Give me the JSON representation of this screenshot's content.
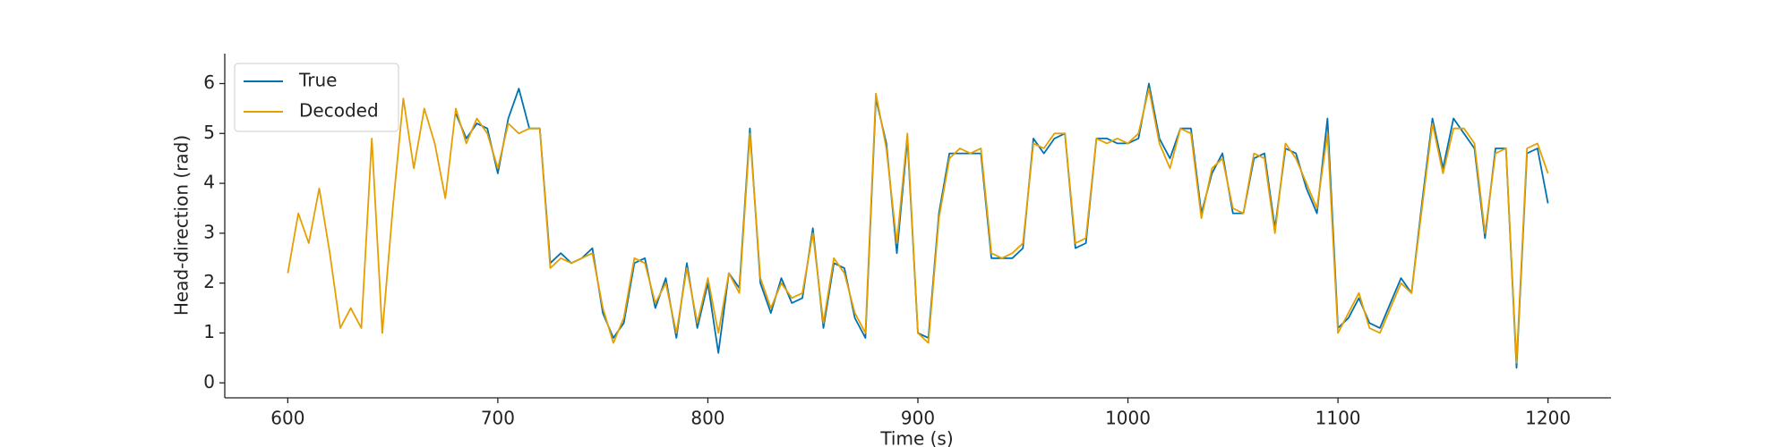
{
  "chart_data": {
    "type": "line",
    "xlabel": "Time (s)",
    "ylabel": "Head-direction (rad)",
    "x": [
      600,
      605,
      610,
      615,
      620,
      625,
      630,
      635,
      640,
      645,
      650,
      655,
      660,
      665,
      670,
      675,
      680,
      685,
      690,
      695,
      700,
      705,
      710,
      715,
      720,
      725,
      730,
      735,
      740,
      745,
      750,
      755,
      760,
      765,
      770,
      775,
      780,
      785,
      790,
      795,
      800,
      805,
      810,
      815,
      820,
      825,
      830,
      835,
      840,
      845,
      850,
      855,
      860,
      865,
      870,
      875,
      880,
      885,
      890,
      895,
      900,
      905,
      910,
      915,
      920,
      925,
      930,
      935,
      940,
      945,
      950,
      955,
      960,
      965,
      970,
      975,
      980,
      985,
      990,
      995,
      1000,
      1005,
      1010,
      1015,
      1020,
      1025,
      1030,
      1035,
      1040,
      1045,
      1050,
      1055,
      1060,
      1065,
      1070,
      1075,
      1080,
      1085,
      1090,
      1095,
      1100,
      1105,
      1110,
      1115,
      1120,
      1125,
      1130,
      1135,
      1140,
      1145,
      1150,
      1155,
      1160,
      1165,
      1170,
      1175,
      1180,
      1185,
      1190,
      1195,
      1200
    ],
    "series": [
      {
        "name": "True",
        "color": "#0072b2",
        "values": [
          null,
          null,
          null,
          null,
          null,
          null,
          null,
          null,
          null,
          null,
          null,
          null,
          null,
          null,
          null,
          null,
          5.4,
          4.9,
          5.2,
          5.1,
          4.2,
          5.3,
          5.9,
          5.1,
          5.1,
          2.4,
          2.6,
          2.4,
          2.5,
          2.7,
          1.4,
          0.9,
          1.2,
          2.4,
          2.5,
          1.5,
          2.1,
          0.9,
          2.4,
          1.1,
          2.0,
          0.6,
          2.2,
          1.9,
          5.1,
          2.0,
          1.4,
          2.1,
          1.6,
          1.7,
          3.1,
          1.1,
          2.4,
          2.3,
          1.3,
          0.9,
          5.7,
          4.8,
          2.6,
          4.9,
          1.0,
          0.9,
          3.4,
          4.6,
          4.6,
          4.6,
          4.6,
          2.5,
          2.5,
          2.5,
          2.7,
          4.9,
          4.6,
          4.9,
          5.0,
          2.7,
          2.8,
          4.9,
          4.9,
          4.8,
          4.8,
          4.9,
          6.0,
          4.9,
          4.5,
          5.1,
          5.1,
          3.4,
          4.2,
          4.6,
          3.4,
          3.4,
          4.5,
          4.6,
          3.1,
          4.7,
          4.6,
          3.9,
          3.4,
          5.3,
          1.1,
          1.3,
          1.7,
          1.2,
          1.1,
          1.6,
          2.1,
          1.8,
          3.6,
          5.3,
          4.3,
          5.3,
          5.0,
          4.7,
          2.9,
          4.7,
          4.7,
          0.3,
          4.6,
          4.7,
          3.6
        ]
      },
      {
        "name": "Decoded",
        "color": "#e69f00",
        "values": [
          2.2,
          3.4,
          2.8,
          3.9,
          2.6,
          1.1,
          1.5,
          1.1,
          4.9,
          1.0,
          3.5,
          5.7,
          4.3,
          5.5,
          4.8,
          3.7,
          5.5,
          4.8,
          5.3,
          5.0,
          4.3,
          5.2,
          5.0,
          5.1,
          5.1,
          2.3,
          2.5,
          2.4,
          2.5,
          2.6,
          1.5,
          0.8,
          1.3,
          2.5,
          2.4,
          1.6,
          2.0,
          1.0,
          2.3,
          1.2,
          2.1,
          1.0,
          2.2,
          1.8,
          5.0,
          2.1,
          1.5,
          2.0,
          1.7,
          1.8,
          3.0,
          1.2,
          2.5,
          2.2,
          1.4,
          1.0,
          5.8,
          4.7,
          2.8,
          5.0,
          1.0,
          0.8,
          3.3,
          4.5,
          4.7,
          4.6,
          4.7,
          2.6,
          2.5,
          2.6,
          2.8,
          4.8,
          4.7,
          5.0,
          5.0,
          2.8,
          2.9,
          4.9,
          4.8,
          4.9,
          4.8,
          5.0,
          5.9,
          4.8,
          4.3,
          5.1,
          5.0,
          3.3,
          4.3,
          4.5,
          3.5,
          3.4,
          4.6,
          4.5,
          3.0,
          4.8,
          4.5,
          4.0,
          3.5,
          5.0,
          1.0,
          1.4,
          1.8,
          1.1,
          1.0,
          1.5,
          2.0,
          1.8,
          3.5,
          5.2,
          4.2,
          5.1,
          5.1,
          4.8,
          3.0,
          4.6,
          4.7,
          0.4,
          4.7,
          4.8,
          4.2
        ]
      }
    ],
    "xlim": [
      570,
      1230
    ],
    "ylim": [
      -0.3,
      6.6
    ],
    "xticks": [
      600,
      700,
      800,
      900,
      1000,
      1100,
      1200
    ],
    "yticks": [
      0,
      1,
      2,
      3,
      4,
      5,
      6
    ],
    "legend": "upper left"
  }
}
